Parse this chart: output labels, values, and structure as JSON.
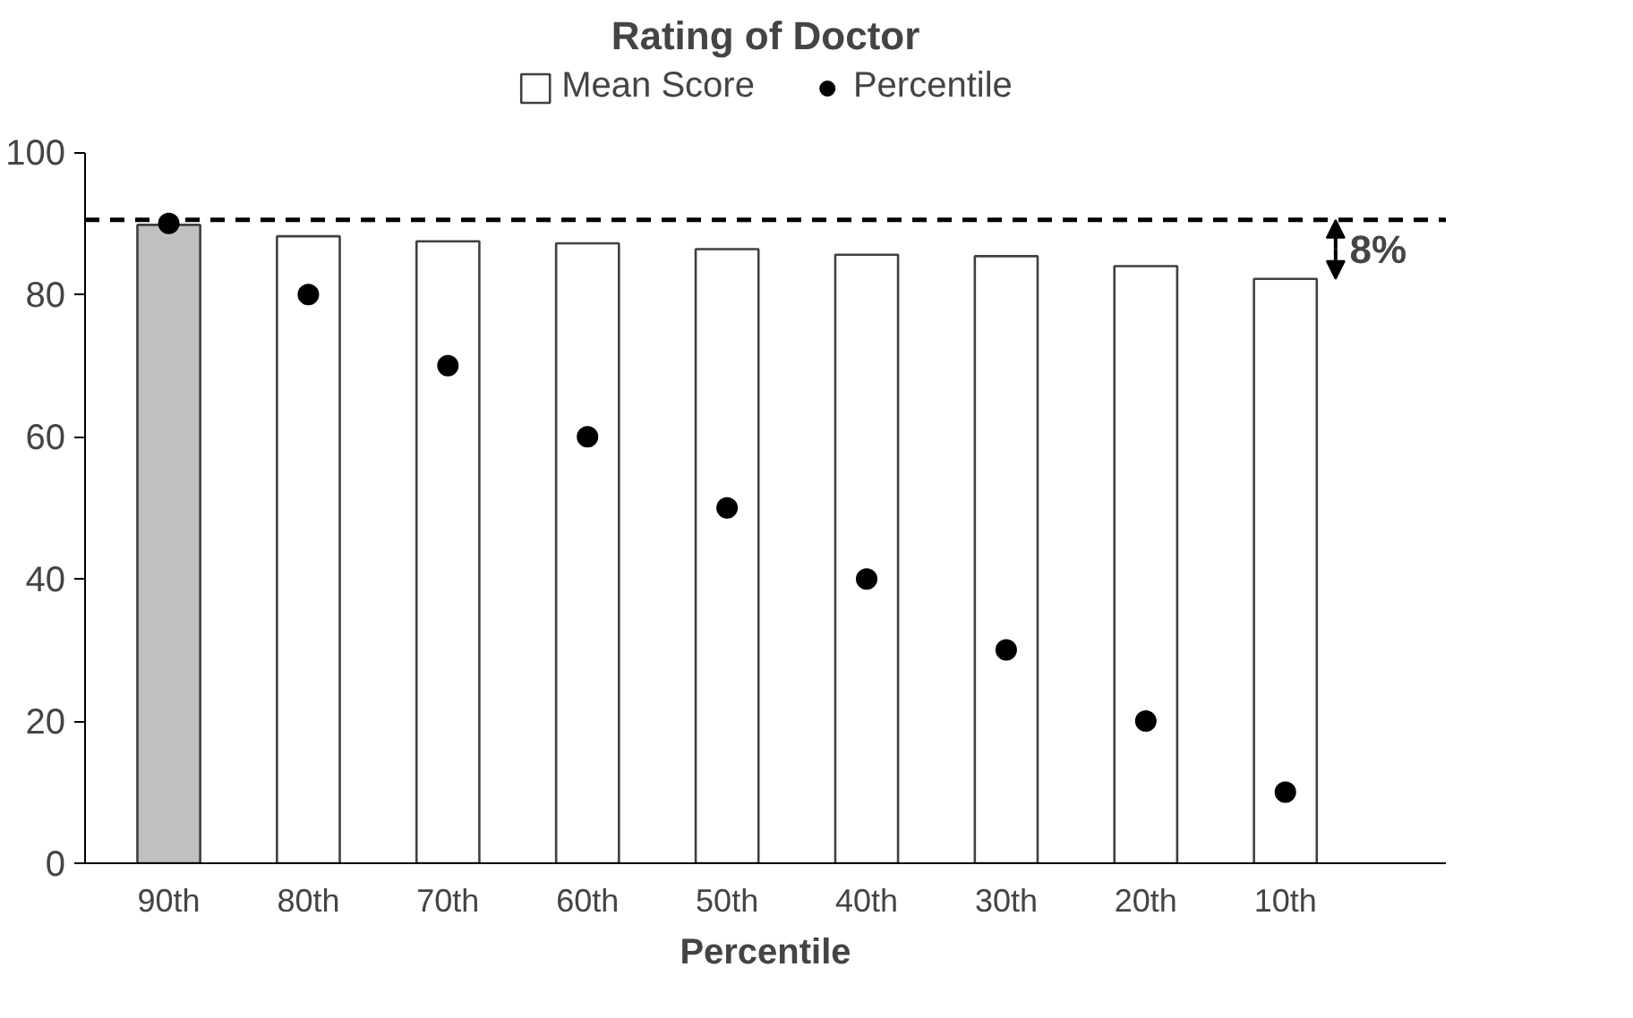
{
  "chart_data": {
    "type": "bar",
    "title": "Rating of Doctor",
    "xlabel": "Percentile",
    "categories": [
      "90th",
      "80th",
      "70th",
      "60th",
      "50th",
      "40th",
      "30th",
      "20th",
      "10th"
    ],
    "series": [
      {
        "name": "Mean Score",
        "colors": [
          "#c0c0c0",
          "#ffffff",
          "#ffffff",
          "#ffffff",
          "#ffffff",
          "#ffffff",
          "#ffffff",
          "#ffffff",
          "#ffffff"
        ],
        "values": [
          89.8,
          88.2,
          87.5,
          87.2,
          86.4,
          85.6,
          85.4,
          84.0,
          82.2
        ]
      },
      {
        "name": "Percentile",
        "type": "scatter",
        "color": "#000000",
        "values": [
          90,
          80,
          70,
          60,
          50,
          40,
          30,
          20,
          10
        ]
      }
    ],
    "ylim": [
      0,
      100
    ],
    "yticks": [
      0,
      20,
      40,
      60,
      80,
      100
    ],
    "grid": false,
    "legend": "top",
    "marker": "circle",
    "ref_lines": [
      {
        "axis": "y",
        "value": 90.5,
        "label": null,
        "color": "#000000",
        "line_style": "dashed"
      }
    ],
    "annotations": [
      "8%"
    ]
  }
}
